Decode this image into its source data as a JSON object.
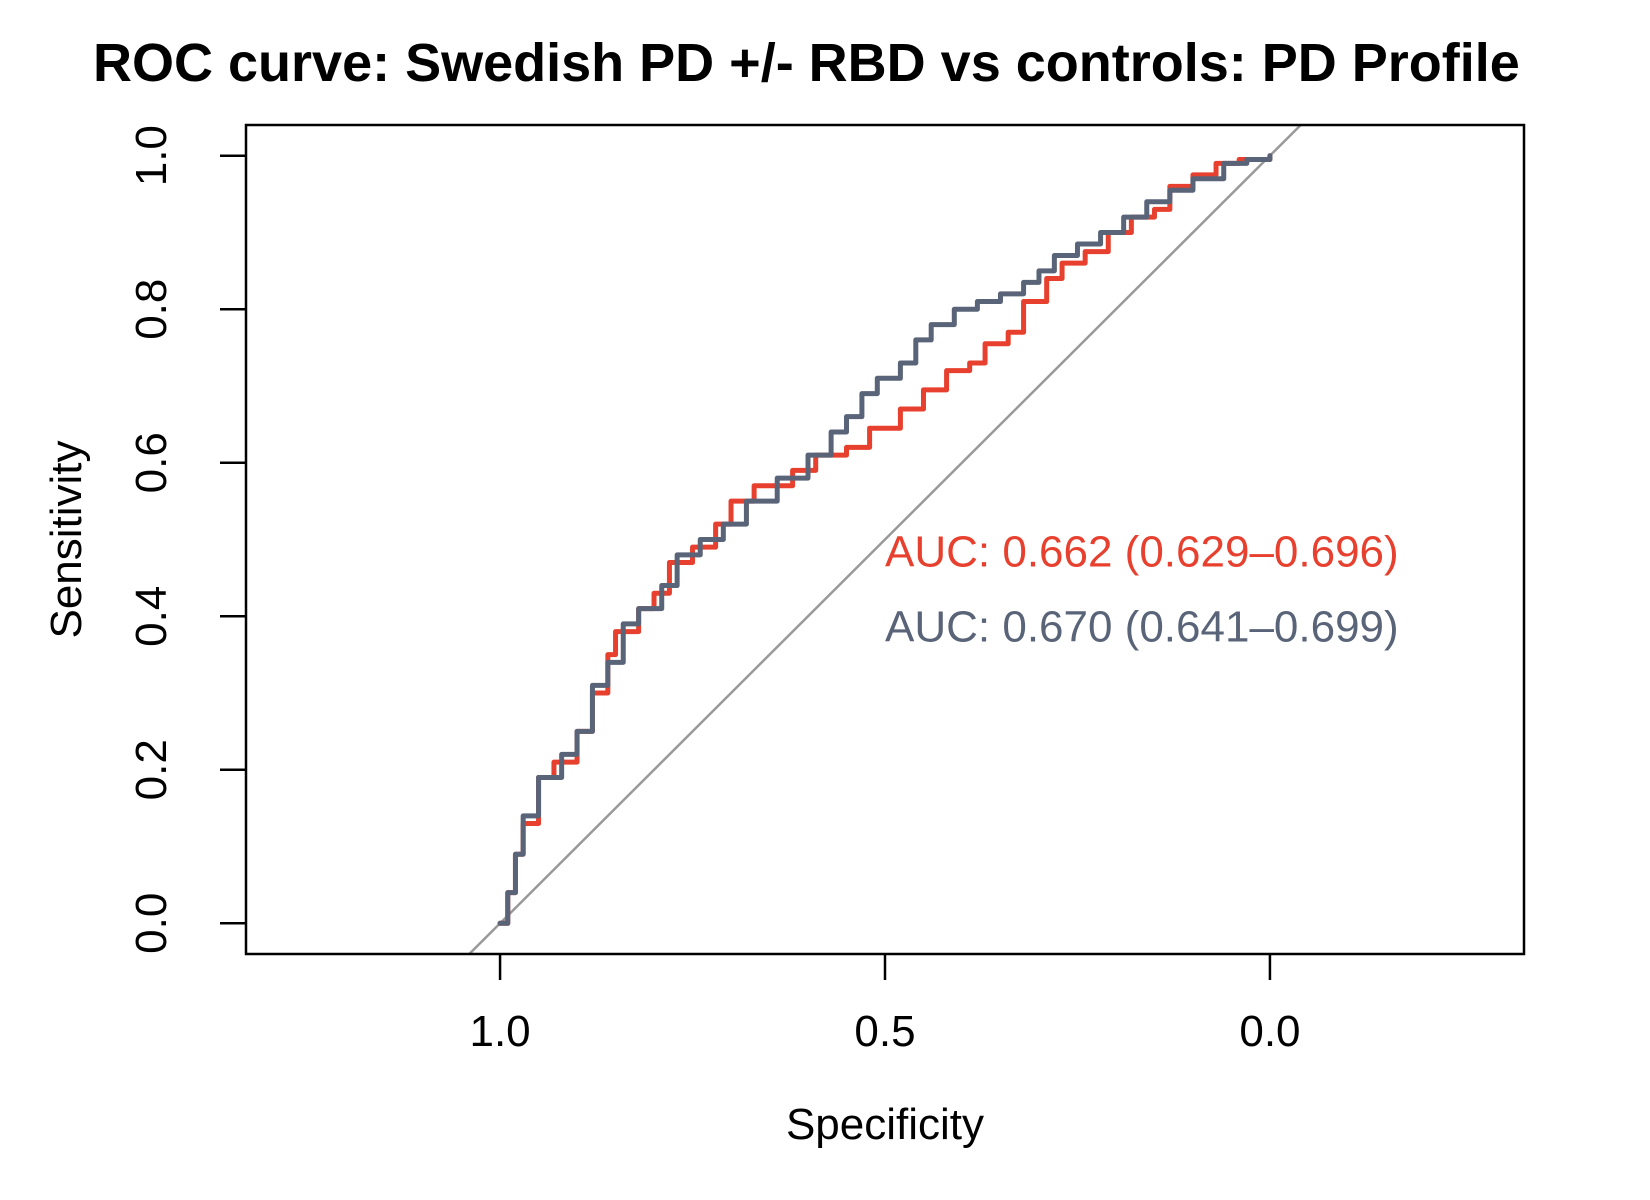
{
  "chart_data": {
    "type": "line",
    "title": "ROC curve: Swedish PD +/- RBD vs controls: PD Profile",
    "xlabel": "Specificity",
    "ylabel": "Sensitivity",
    "xlim": [
      1.33,
      -0.33
    ],
    "ylim": [
      -0.04,
      1.04
    ],
    "x_axis_reversed": true,
    "x_ticks": [
      "1.0",
      "0.5",
      "0.0"
    ],
    "y_ticks": [
      "0.0",
      "0.2",
      "0.4",
      "0.6",
      "0.8",
      "1.0"
    ],
    "grid": false,
    "reference_line": "diagonal",
    "colors": {
      "reference": "#999999"
    },
    "series": [
      {
        "color": "#e8402e",
        "annotation": "AUC: 0.662 (0.629–0.696)",
        "points": [
          [
            1.0,
            0.0
          ],
          [
            0.99,
            0.04
          ],
          [
            0.98,
            0.09
          ],
          [
            0.97,
            0.13
          ],
          [
            0.95,
            0.19
          ],
          [
            0.93,
            0.21
          ],
          [
            0.9,
            0.25
          ],
          [
            0.88,
            0.3
          ],
          [
            0.86,
            0.35
          ],
          [
            0.85,
            0.38
          ],
          [
            0.82,
            0.41
          ],
          [
            0.8,
            0.43
          ],
          [
            0.78,
            0.47
          ],
          [
            0.75,
            0.49
          ],
          [
            0.72,
            0.52
          ],
          [
            0.7,
            0.55
          ],
          [
            0.67,
            0.57
          ],
          [
            0.62,
            0.59
          ],
          [
            0.59,
            0.61
          ],
          [
            0.55,
            0.62
          ],
          [
            0.52,
            0.645
          ],
          [
            0.48,
            0.67
          ],
          [
            0.45,
            0.695
          ],
          [
            0.42,
            0.72
          ],
          [
            0.39,
            0.73
          ],
          [
            0.37,
            0.755
          ],
          [
            0.34,
            0.77
          ],
          [
            0.32,
            0.81
          ],
          [
            0.29,
            0.84
          ],
          [
            0.27,
            0.86
          ],
          [
            0.24,
            0.875
          ],
          [
            0.21,
            0.9
          ],
          [
            0.18,
            0.92
          ],
          [
            0.15,
            0.93
          ],
          [
            0.13,
            0.96
          ],
          [
            0.1,
            0.975
          ],
          [
            0.07,
            0.99
          ],
          [
            0.04,
            0.995
          ],
          [
            0.0,
            1.0
          ]
        ]
      },
      {
        "color": "#5a6478",
        "annotation": "AUC: 0.670 (0.641–0.699)",
        "points": [
          [
            1.0,
            0.0
          ],
          [
            0.99,
            0.04
          ],
          [
            0.98,
            0.09
          ],
          [
            0.97,
            0.14
          ],
          [
            0.95,
            0.19
          ],
          [
            0.92,
            0.22
          ],
          [
            0.9,
            0.25
          ],
          [
            0.88,
            0.31
          ],
          [
            0.86,
            0.34
          ],
          [
            0.84,
            0.39
          ],
          [
            0.82,
            0.41
          ],
          [
            0.79,
            0.44
          ],
          [
            0.77,
            0.48
          ],
          [
            0.74,
            0.5
          ],
          [
            0.71,
            0.52
          ],
          [
            0.68,
            0.55
          ],
          [
            0.64,
            0.58
          ],
          [
            0.6,
            0.61
          ],
          [
            0.57,
            0.64
          ],
          [
            0.55,
            0.66
          ],
          [
            0.53,
            0.69
          ],
          [
            0.51,
            0.71
          ],
          [
            0.48,
            0.73
          ],
          [
            0.46,
            0.76
          ],
          [
            0.44,
            0.78
          ],
          [
            0.41,
            0.8
          ],
          [
            0.38,
            0.81
          ],
          [
            0.35,
            0.82
          ],
          [
            0.32,
            0.835
          ],
          [
            0.3,
            0.85
          ],
          [
            0.28,
            0.87
          ],
          [
            0.25,
            0.885
          ],
          [
            0.22,
            0.9
          ],
          [
            0.19,
            0.92
          ],
          [
            0.16,
            0.94
          ],
          [
            0.13,
            0.955
          ],
          [
            0.1,
            0.97
          ],
          [
            0.06,
            0.99
          ],
          [
            0.03,
            0.995
          ],
          [
            0.0,
            1.0
          ]
        ]
      }
    ]
  }
}
